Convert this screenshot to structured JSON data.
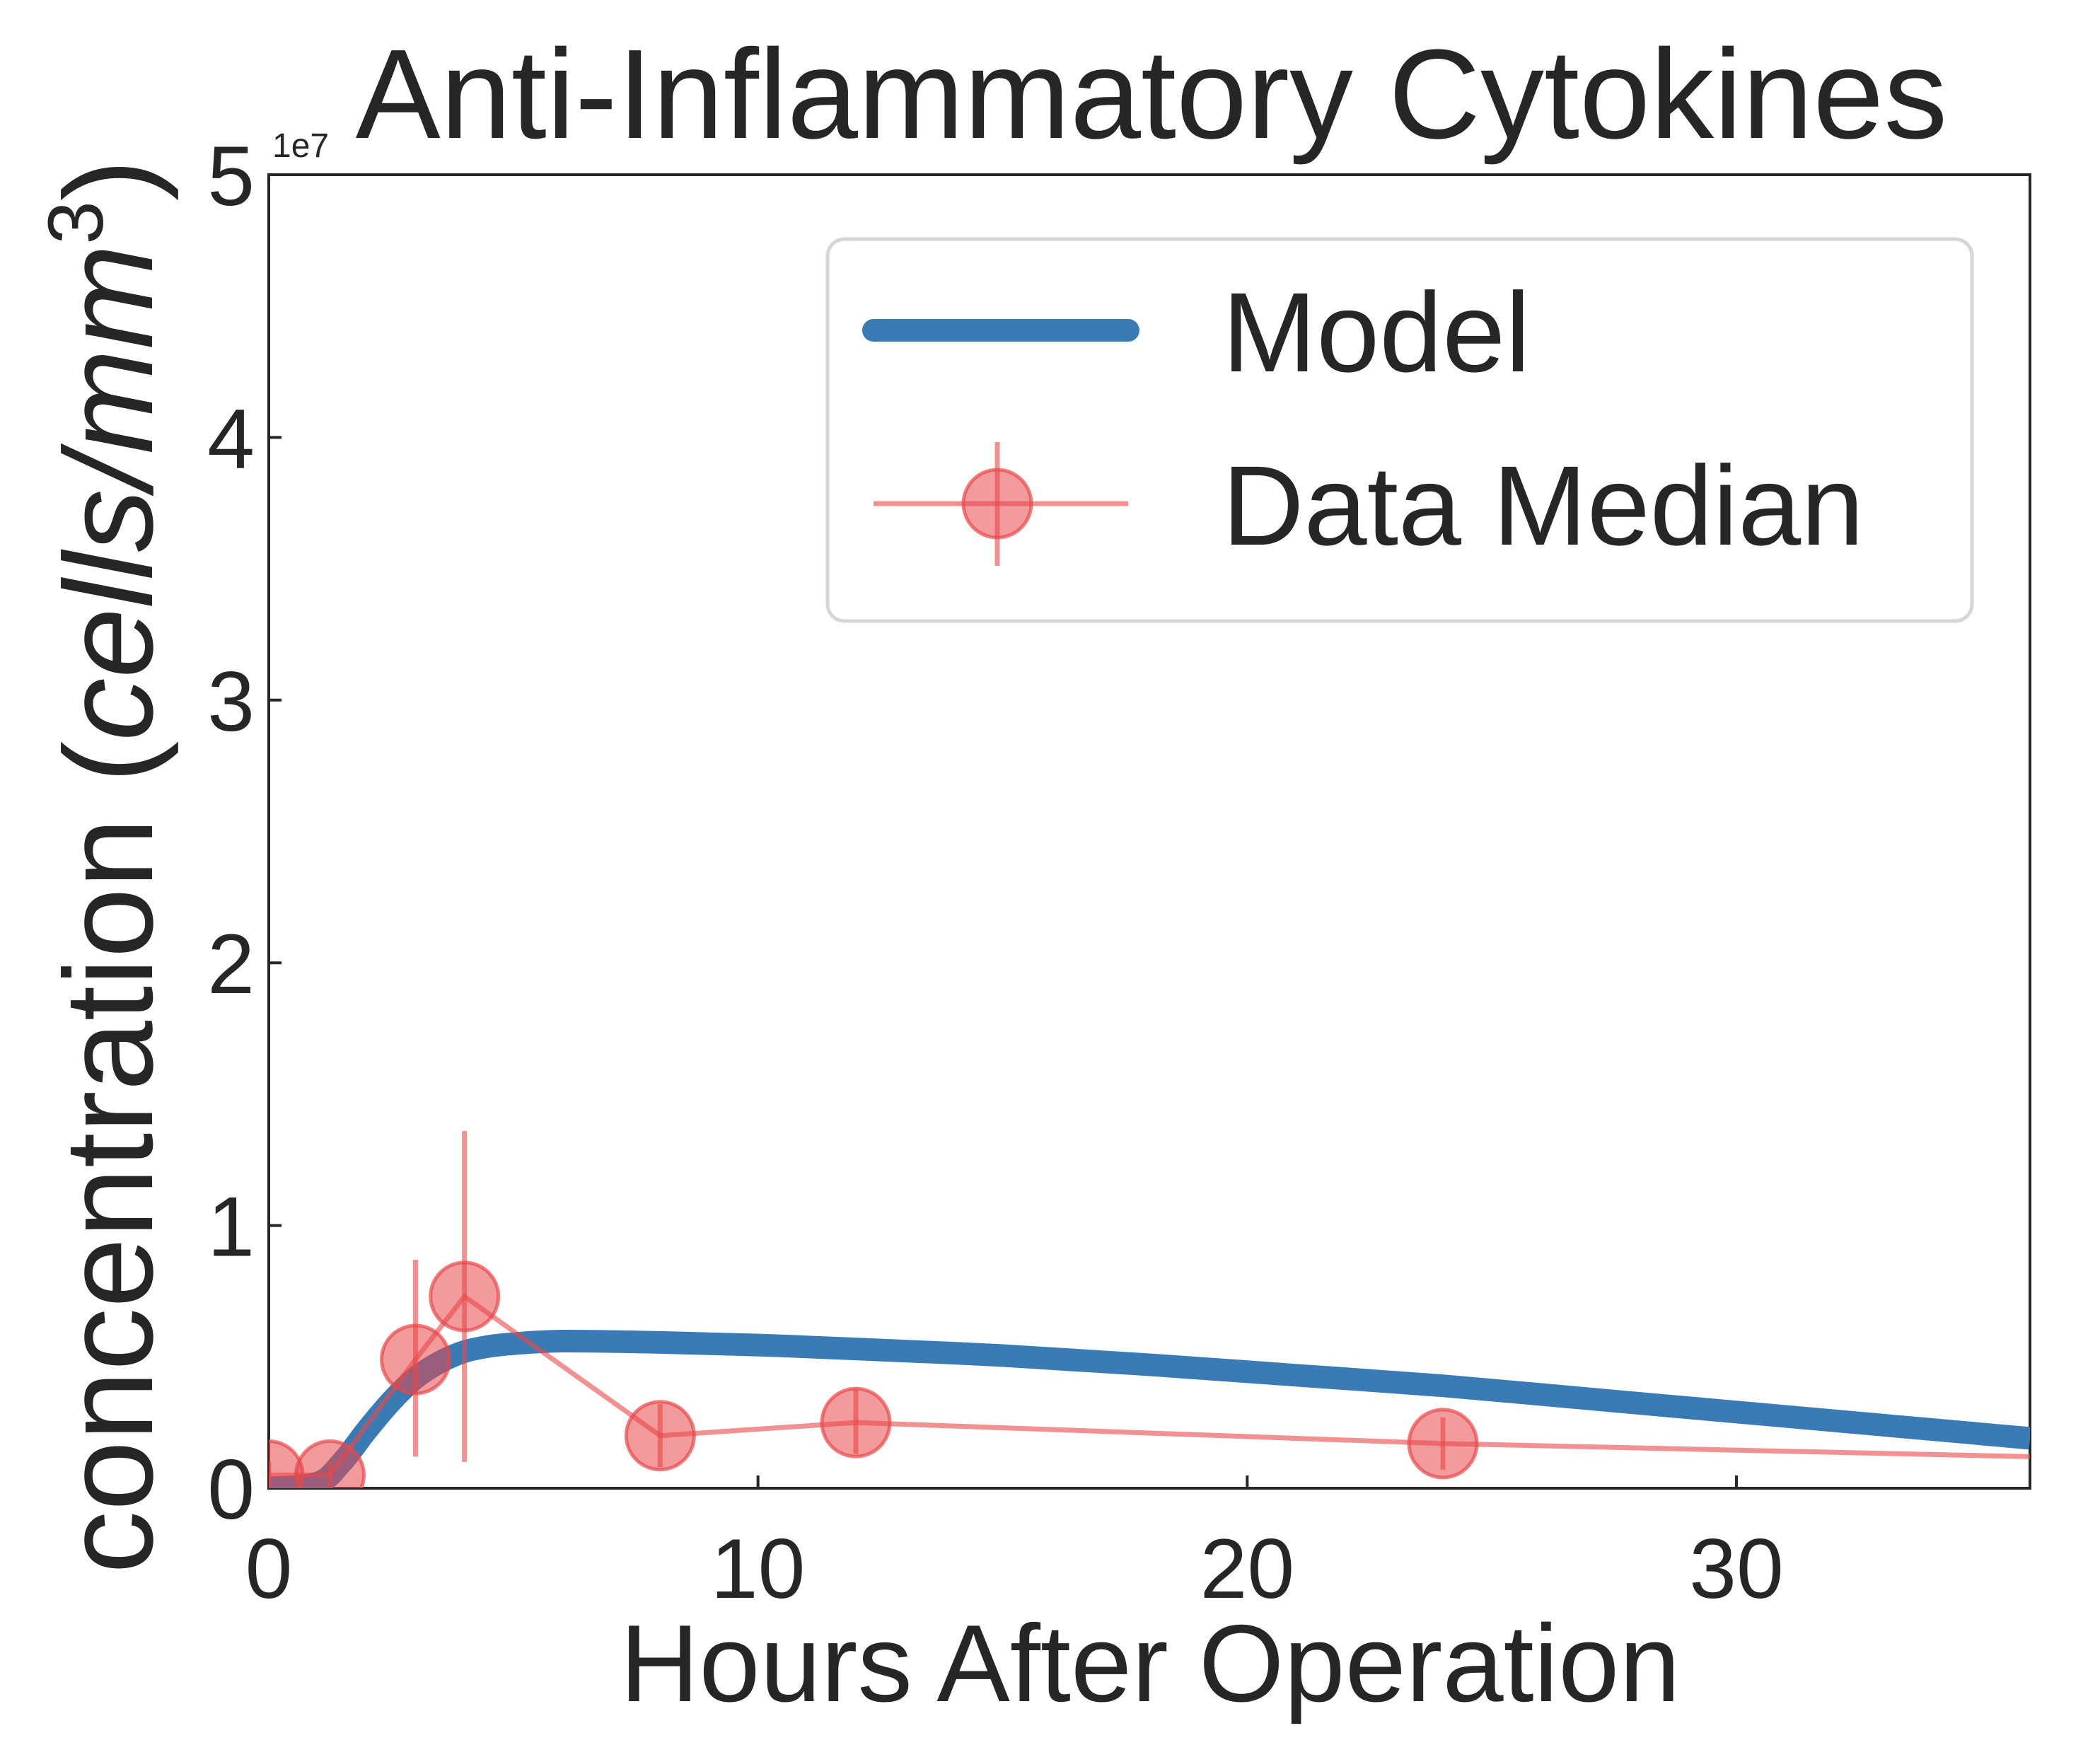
{
  "chart_data": {
    "type": "line",
    "title": "Anti-Inflammatory Cytokines",
    "xlabel": "Hours After Operation",
    "ylabel_main": "concentration (",
    "ylabel_italic": "cells/mm",
    "ylabel_sup": "3",
    "ylabel_close": ")",
    "y_offset_text": "1e7",
    "xlim": [
      0,
      36
    ],
    "ylim": [
      0,
      5
    ],
    "y_scale_note": "values in units of 1e7",
    "x_ticks": [
      0,
      10,
      20,
      30
    ],
    "y_ticks": [
      0,
      1,
      2,
      3,
      4,
      5
    ],
    "grid": false,
    "legend_position": "top-right",
    "series": [
      {
        "name": "Model",
        "style": "line",
        "color": "#3a7ab5",
        "x": [
          0,
          1.0,
          1.5,
          2.0,
          2.5,
          3.0,
          3.5,
          4.0,
          4.5,
          5.0,
          6.0,
          8.0,
          10.0,
          12.0,
          15.0,
          18.0,
          21.0,
          24.0,
          27.0,
          30.0,
          33.0,
          36.0
        ],
        "y": [
          0.0,
          0.02,
          0.1,
          0.22,
          0.33,
          0.42,
          0.48,
          0.52,
          0.54,
          0.55,
          0.56,
          0.555,
          0.545,
          0.53,
          0.505,
          0.47,
          0.43,
          0.39,
          0.34,
          0.29,
          0.24,
          0.19
        ]
      },
      {
        "name": "Data Median",
        "style": "marker-line-errorbar",
        "color": "#e8474a",
        "x": [
          0,
          1.25,
          3,
          4,
          8,
          12,
          24,
          36
        ],
        "y": [
          0.05,
          0.05,
          0.49,
          0.73,
          0.2,
          0.25,
          0.17,
          0.12
        ],
        "y_err_low": [
          0.05,
          0.05,
          0.37,
          0.63,
          0.12,
          0.12,
          0.1,
          0.0
        ],
        "y_err_high": [
          0.05,
          0.05,
          0.38,
          0.63,
          0.12,
          0.13,
          0.1,
          0.0
        ]
      }
    ]
  }
}
